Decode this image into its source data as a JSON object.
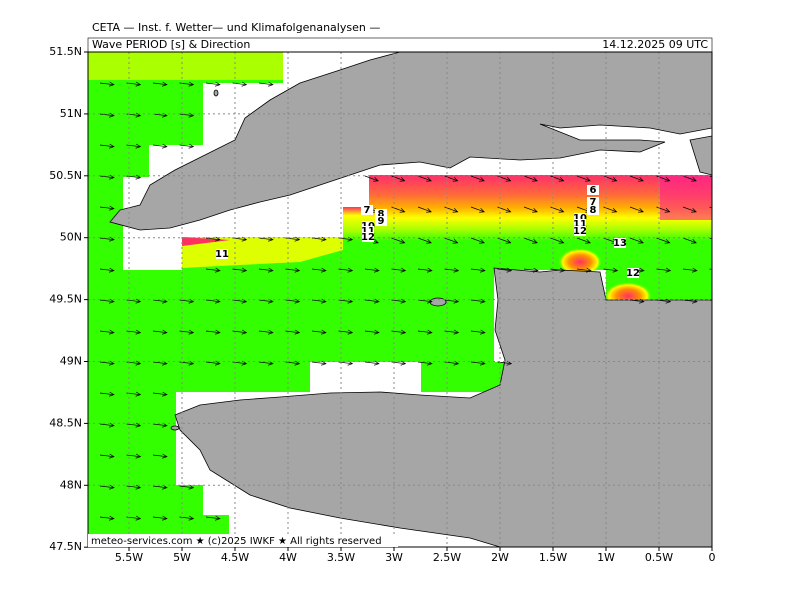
{
  "header": {
    "institute": "CETA — Inst. f. Wetter— und Klimafolgenanalysen —",
    "title": "Wave PERIOD [s] & Direction",
    "timestamp": "14.12.2025 09 UTC"
  },
  "axes": {
    "x_labels": [
      "5.5W",
      "5W",
      "4.5W",
      "4W",
      "3.5W",
      "3W",
      "2.5W",
      "2W",
      "1.5W",
      "1W",
      "0.5W",
      "0"
    ],
    "y_labels": [
      "51.5N",
      "51N",
      "50.5N",
      "50N",
      "49.5N",
      "49N",
      "48.5N",
      "48N",
      "47.5N"
    ]
  },
  "contour_labels": [
    "7",
    "8",
    "9",
    "10",
    "11",
    "12",
    "6",
    "7",
    "8",
    "10",
    "11",
    "12",
    "13",
    "11",
    "12"
  ],
  "footer": "meteo-services.com ★ (c)2025 IWKF ★ All rights reserved"
}
